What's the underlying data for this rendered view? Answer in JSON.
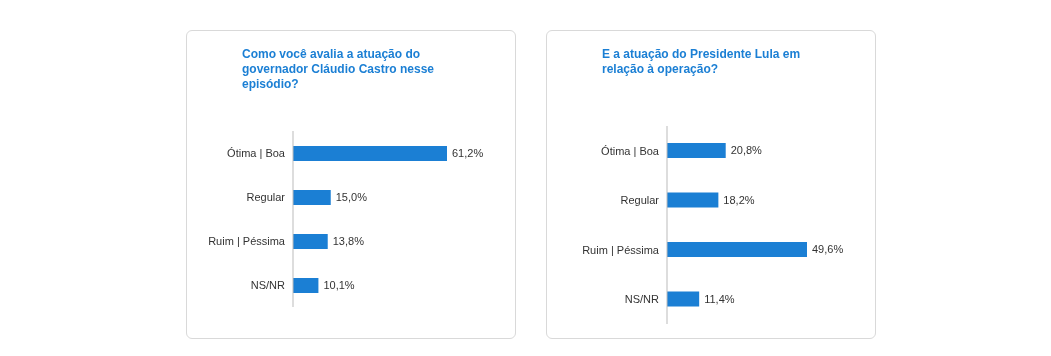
{
  "chart_data": [
    {
      "type": "bar",
      "orientation": "horizontal",
      "title": "Como você avalia a atuação do governador Cláudio Castro nesse episódio?",
      "categories": [
        "Ótima | Boa",
        "Regular",
        "Ruim | Péssima",
        "NS/NR"
      ],
      "values": [
        61.2,
        15.0,
        13.8,
        10.1
      ],
      "color": "#1b7fd4",
      "value_labels": [
        "61,2%",
        "15,0%",
        "13,8%",
        "10,1%"
      ]
    },
    {
      "type": "bar",
      "orientation": "horizontal",
      "title": "E a atuação do Presidente Lula em relação à operação?",
      "categories": [
        "Ótima | Boa",
        "Regular",
        "Ruim | Péssima",
        "NS/NR"
      ],
      "values": [
        20.8,
        18.2,
        49.6,
        11.4
      ],
      "color": "#1b7fd4",
      "value_labels": [
        "20,8%",
        "18,2%",
        "49,6%",
        "11,4%"
      ]
    }
  ]
}
